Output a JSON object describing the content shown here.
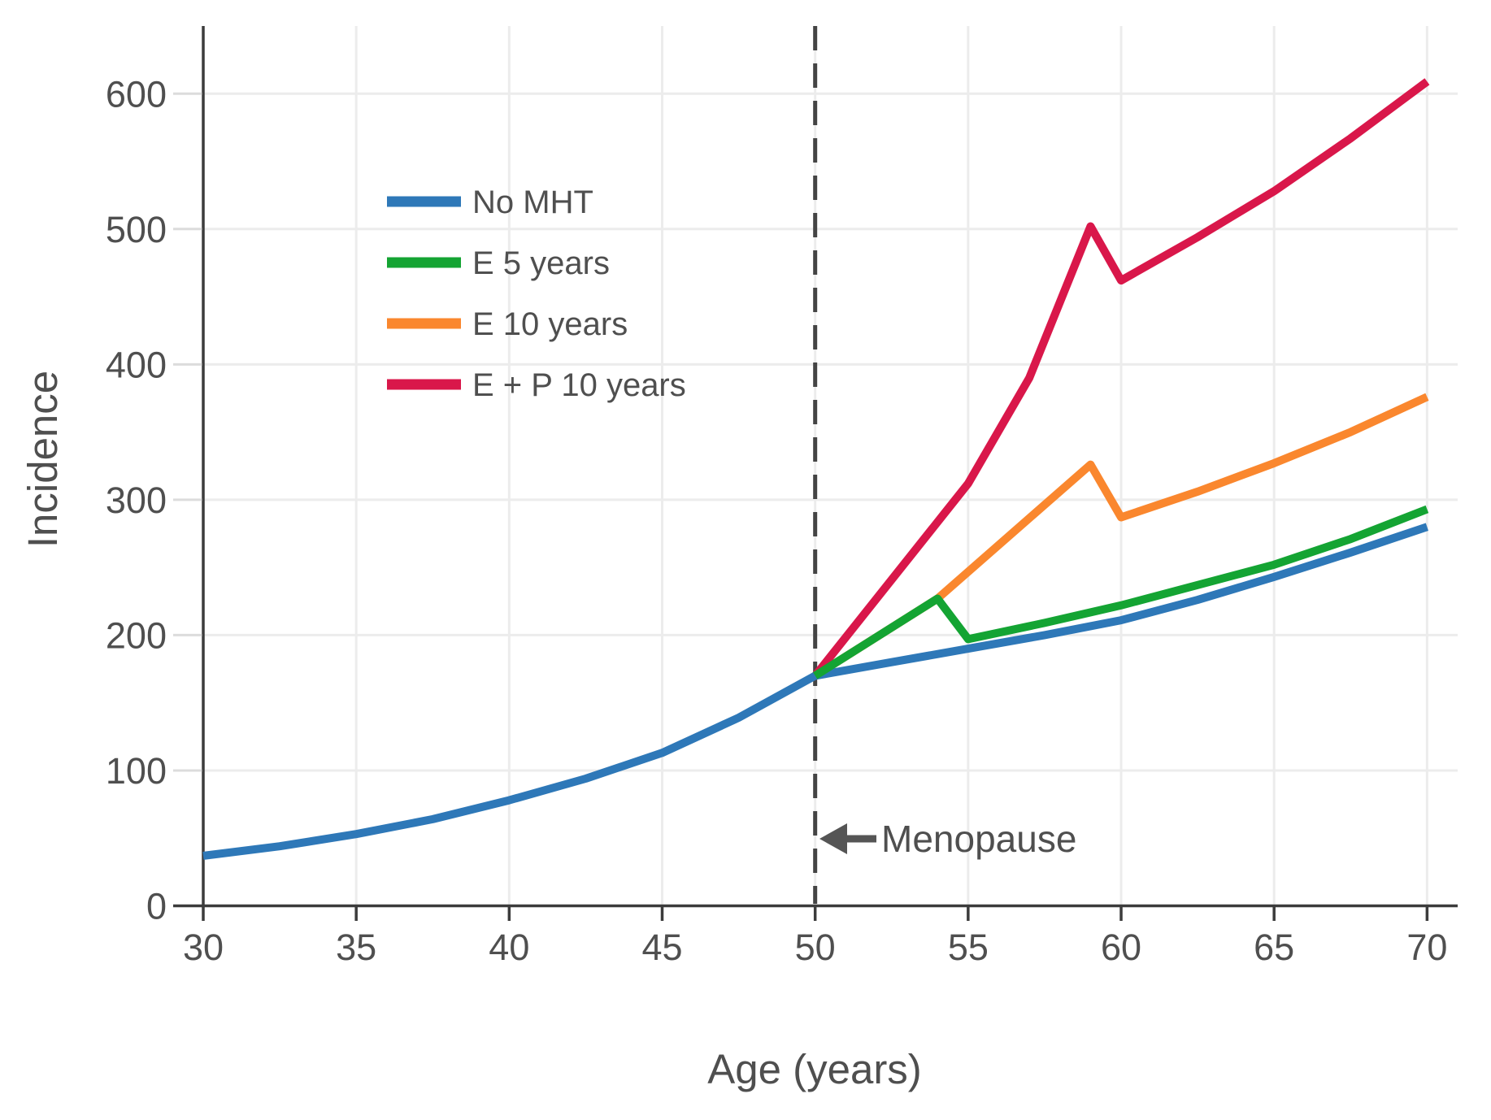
{
  "figure": {
    "background": "#ffffff",
    "text_color": "#4f4f4f",
    "axis_color": "#3c3c3c",
    "grid_color": "#ececec"
  },
  "chart_data": {
    "type": "line",
    "title": "",
    "xlabel": "Age (years)",
    "ylabel": "Incidence",
    "xlim": [
      30,
      71
    ],
    "ylim": [
      0,
      650
    ],
    "xticks": [
      30,
      35,
      40,
      45,
      50,
      55,
      60,
      65,
      70
    ],
    "yticks": [
      0,
      100,
      200,
      300,
      400,
      500,
      600
    ],
    "grid": true,
    "legend": {
      "position": "upper left inside plot",
      "items": [
        "No MHT",
        "E 5 years",
        "E 10 years",
        "E + P 10 years"
      ]
    },
    "annotations": [
      {
        "text": "Menopause",
        "x": 50,
        "arrow": "left-pointing",
        "style": "vertical dashed line at x=50"
      }
    ],
    "series": [
      {
        "name": "No MHT",
        "color": "#2e78b8",
        "points": [
          [
            30,
            37
          ],
          [
            32.5,
            44
          ],
          [
            35,
            53
          ],
          [
            37.5,
            64
          ],
          [
            40,
            78
          ],
          [
            42.5,
            94
          ],
          [
            45,
            113
          ],
          [
            47.5,
            139
          ],
          [
            50,
            170
          ],
          [
            52.5,
            180
          ],
          [
            55,
            190
          ],
          [
            57.5,
            200
          ],
          [
            60,
            211
          ],
          [
            62.5,
            226
          ],
          [
            65,
            243
          ],
          [
            67.5,
            261
          ],
          [
            70,
            280
          ]
        ]
      },
      {
        "name": "E 5 years",
        "color": "#14a433",
        "points": [
          [
            50,
            170
          ],
          [
            54,
            227
          ],
          [
            55,
            197
          ],
          [
            57.5,
            209
          ],
          [
            60,
            222
          ],
          [
            62.5,
            237
          ],
          [
            65,
            252
          ],
          [
            67.5,
            271
          ],
          [
            70,
            293
          ]
        ]
      },
      {
        "name": "E 10 years",
        "color": "#fa872e",
        "points": [
          [
            50,
            170
          ],
          [
            54,
            227
          ],
          [
            59,
            326
          ],
          [
            60,
            287
          ],
          [
            62.5,
            306
          ],
          [
            65,
            327
          ],
          [
            67.5,
            350
          ],
          [
            70,
            376
          ]
        ]
      },
      {
        "name": "E + P 10 years",
        "color": "#d9174a",
        "points": [
          [
            50,
            170
          ],
          [
            55,
            312
          ],
          [
            57,
            390
          ],
          [
            59,
            502
          ],
          [
            60,
            462
          ],
          [
            62.5,
            494
          ],
          [
            65,
            528
          ],
          [
            67.5,
            567
          ],
          [
            70,
            609
          ]
        ]
      }
    ],
    "draw_order": [
      2,
      3,
      0,
      1
    ]
  }
}
